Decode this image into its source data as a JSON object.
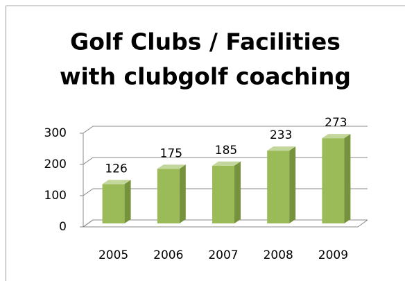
{
  "chart_data": {
    "type": "bar3d",
    "title": "Golf Clubs / Facilities",
    "subtitle": "with clubgolf coaching",
    "categories": [
      "2005",
      "2006",
      "2007",
      "2008",
      "2009"
    ],
    "values": [
      126,
      175,
      185,
      233,
      273
    ],
    "color": "#9bbb59",
    "ylim": [
      0,
      300
    ],
    "yticks": [
      0,
      100,
      200,
      300
    ],
    "grid": true
  }
}
